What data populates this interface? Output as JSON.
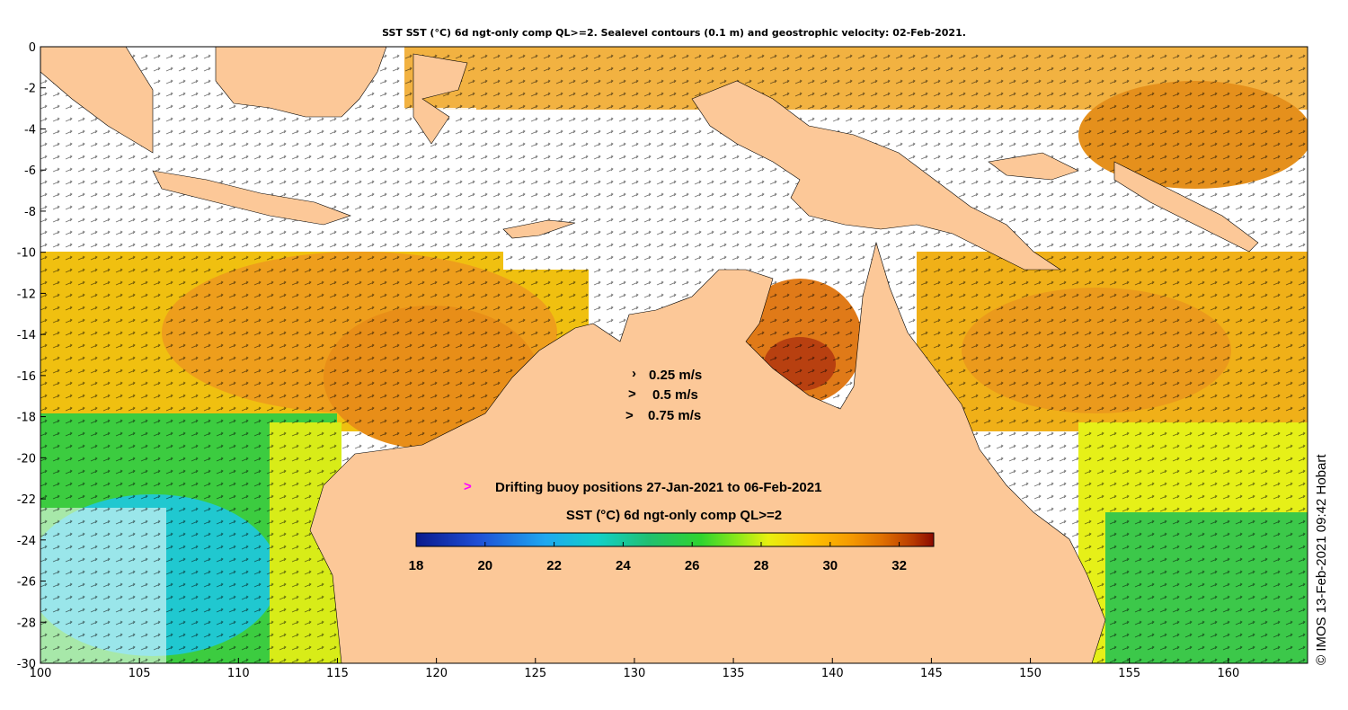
{
  "title": "SST SST (°C) 6d ngt-only comp QL>=2. Sealevel contours (0.1 m) and geostrophic velocity: 02-Feb-2021.",
  "axes": {
    "x_ticks": [
      "100",
      "105",
      "110",
      "115",
      "120",
      "125",
      "130",
      "135",
      "140",
      "145",
      "150",
      "155",
      "160"
    ],
    "y_ticks": [
      "0",
      "-2",
      "-4",
      "-6",
      "-8",
      "-10",
      "-12",
      "-14",
      "-16",
      "-18",
      "-20",
      "-22",
      "-24",
      "-26",
      "-28",
      "-30"
    ],
    "lon_range": [
      100,
      164
    ],
    "lat_range": [
      -30,
      0
    ]
  },
  "velocity_legend": [
    {
      "label": "0.25 m/s",
      "marker": "›"
    },
    {
      "label": "0.5 m/s",
      "marker": ">"
    },
    {
      "label": "0.75 m/s",
      "marker": ">"
    }
  ],
  "buoy_legend": {
    "marker": ">",
    "label": "Drifting buoy positions 27-Jan-2021 to 06-Feb-2021",
    "marker_color": "#ff00ff"
  },
  "colorbar": {
    "title": "SST (°C) 6d ngt-only comp QL>=2",
    "ticks": [
      "18",
      "20",
      "22",
      "24",
      "26",
      "28",
      "30",
      "32"
    ],
    "range": [
      18,
      33
    ],
    "colors": [
      "#0a1a8c",
      "#1f4fd6",
      "#1fa8f0",
      "#12d0c8",
      "#20c070",
      "#2fd42f",
      "#8ae81a",
      "#e8f010",
      "#ffc400",
      "#f59a00",
      "#e07000",
      "#b83a00",
      "#8c0a00"
    ]
  },
  "credit": "© IMOS 13-Feb-2021 09:42 Hobart",
  "colors": {
    "land": "#fcc898",
    "ocean_warm": "#f0a020",
    "ocean_yellow": "#f0c010",
    "ocean_green": "#30c040",
    "ocean_cyan": "#20c0d0",
    "cloud": "#ffffff"
  }
}
